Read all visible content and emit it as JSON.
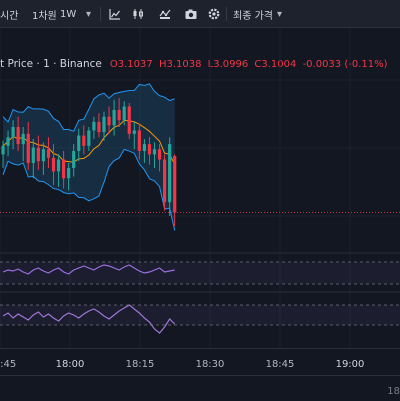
{
  "toolbar": {
    "interval_short": "시간",
    "interval_menu": "1차원",
    "timeframe": "1W",
    "price_type": "최종 가격",
    "dropdown_caret": "▾"
  },
  "legend": {
    "symbol": "t Price · 1 · Binance",
    "open": "O3.1037",
    "high": "H3.1038",
    "low": "L3.0996",
    "close": "C3.1004",
    "change": "-0.0033 (-0.11%)"
  },
  "xaxis": {
    "labels": [
      "8:45",
      "18:00",
      "18:15",
      "18:30",
      "18:45",
      "19:00"
    ],
    "bottom_partial": "18"
  },
  "colors": {
    "background": "#131722",
    "bull": "#26a69a",
    "bear": "#f23645",
    "band_fill": "#1d4a6a",
    "band_line": "#2196f3",
    "ma": "#ff9800",
    "rsi": "#9c6fe0",
    "osc": "#a076d6"
  },
  "chart_data": {
    "type": "candlestick",
    "candles": [
      {
        "o": 3.1038,
        "h": 3.1046,
        "l": 3.103,
        "c": 3.1043
      },
      {
        "o": 3.1043,
        "h": 3.1052,
        "l": 3.1037,
        "c": 3.1048
      },
      {
        "o": 3.1048,
        "h": 3.1058,
        "l": 3.1041,
        "c": 3.1054
      },
      {
        "o": 3.1054,
        "h": 3.106,
        "l": 3.104,
        "c": 3.1044
      },
      {
        "o": 3.1044,
        "h": 3.1054,
        "l": 3.1034,
        "c": 3.105
      },
      {
        "o": 3.105,
        "h": 3.1057,
        "l": 3.1029,
        "c": 3.1033
      },
      {
        "o": 3.1033,
        "h": 3.1047,
        "l": 3.1024,
        "c": 3.1042
      },
      {
        "o": 3.1042,
        "h": 3.1049,
        "l": 3.1029,
        "c": 3.1034
      },
      {
        "o": 3.1034,
        "h": 3.1045,
        "l": 3.1026,
        "c": 3.1041
      },
      {
        "o": 3.1041,
        "h": 3.1048,
        "l": 3.103,
        "c": 3.1036
      },
      {
        "o": 3.1036,
        "h": 3.1044,
        "l": 3.102,
        "c": 3.1028
      },
      {
        "o": 3.1028,
        "h": 3.1038,
        "l": 3.1019,
        "c": 3.1035
      },
      {
        "o": 3.1035,
        "h": 3.104,
        "l": 3.1018,
        "c": 3.1024
      },
      {
        "o": 3.1024,
        "h": 3.1033,
        "l": 3.1017,
        "c": 3.103
      },
      {
        "o": 3.103,
        "h": 3.1044,
        "l": 3.1025,
        "c": 3.104
      },
      {
        "o": 3.104,
        "h": 3.1053,
        "l": 3.1034,
        "c": 3.1049
      },
      {
        "o": 3.1049,
        "h": 3.1055,
        "l": 3.1038,
        "c": 3.1043
      },
      {
        "o": 3.1043,
        "h": 3.1054,
        "l": 3.104,
        "c": 3.1052
      },
      {
        "o": 3.1052,
        "h": 3.106,
        "l": 3.1047,
        "c": 3.1057
      },
      {
        "o": 3.1057,
        "h": 3.1062,
        "l": 3.1048,
        "c": 3.1051
      },
      {
        "o": 3.1051,
        "h": 3.1063,
        "l": 3.1046,
        "c": 3.106
      },
      {
        "o": 3.106,
        "h": 3.1066,
        "l": 3.105,
        "c": 3.1055
      },
      {
        "o": 3.1055,
        "h": 3.107,
        "l": 3.1049,
        "c": 3.1064
      },
      {
        "o": 3.1064,
        "h": 3.1071,
        "l": 3.1054,
        "c": 3.1058
      },
      {
        "o": 3.1058,
        "h": 3.1069,
        "l": 3.1055,
        "c": 3.1066
      },
      {
        "o": 3.1066,
        "h": 3.1068,
        "l": 3.1047,
        "c": 3.105
      },
      {
        "o": 3.105,
        "h": 3.1057,
        "l": 3.1041,
        "c": 3.1052
      },
      {
        "o": 3.1052,
        "h": 3.1056,
        "l": 3.1035,
        "c": 3.104
      },
      {
        "o": 3.104,
        "h": 3.1047,
        "l": 3.1033,
        "c": 3.1044
      },
      {
        "o": 3.1044,
        "h": 3.1048,
        "l": 3.1032,
        "c": 3.1038
      },
      {
        "o": 3.1038,
        "h": 3.1045,
        "l": 3.103,
        "c": 3.1041
      },
      {
        "o": 3.1041,
        "h": 3.1044,
        "l": 3.1028,
        "c": 3.1035
      },
      {
        "o": 3.1035,
        "h": 3.1038,
        "l": 3.1005,
        "c": 3.101
      },
      {
        "o": 3.101,
        "h": 3.1048,
        "l": 3.1002,
        "c": 3.1044
      },
      {
        "o": 3.1037,
        "h": 3.1038,
        "l": 3.0996,
        "c": 3.1004
      }
    ],
    "current_price": 3.1004,
    "ylim": [
      3.0985,
      3.1085
    ]
  }
}
